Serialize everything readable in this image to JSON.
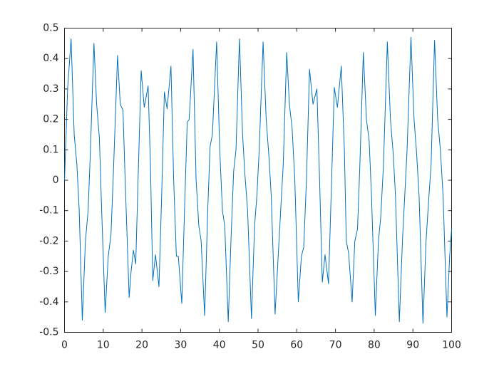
{
  "chart_data": {
    "type": "line",
    "x": [
      0,
      0.8,
      1.7,
      2.5,
      3.2,
      3.8,
      4.6,
      5.4,
      6.1,
      6.7,
      7.6,
      8.3,
      9.0,
      9.6,
      10.5,
      11.3,
      12.0,
      12.7,
      13.7,
      14.4,
      15.1,
      15.8,
      16.7,
      17.2,
      17.8,
      18.4,
      19.0,
      19.8,
      20.6,
      21.6,
      22.2,
      22.8,
      23.5,
      24.4,
      25.1,
      25.8,
      26.5,
      27.5,
      28.2,
      28.9,
      29.4,
      30.3,
      31.0,
      31.7,
      32.2,
      33.2,
      34.0,
      34.7,
      35.3,
      36.2,
      37.0,
      37.6,
      38.2,
      39.3,
      40.1,
      40.8,
      41.4,
      42.3,
      43.0,
      43.7,
      44.3,
      45.2,
      46.0,
      46.6,
      47.3,
      48.3,
      49.1,
      49.7,
      50.3,
      51.3,
      52.1,
      52.8,
      53.4,
      54.4,
      55.2,
      55.8,
      56.5,
      57.4,
      58.1,
      58.8,
      59.5,
      60.4,
      61.2,
      61.8,
      62.5,
      63.3,
      64.2,
      65.2,
      65.9,
      66.6,
      67.3,
      68.2,
      69.0,
      69.7,
      70.5,
      71.5,
      72.3,
      72.8,
      73.4,
      74.3,
      75.0,
      75.7,
      76.3,
      77.2,
      78.0,
      78.7,
      79.3,
      80.3,
      81.1,
      81.7,
      82.4,
      83.4,
      84.2,
      84.9,
      85.5,
      86.5,
      87.3,
      87.9,
      88.5,
      89.5,
      90.3,
      90.9,
      91.6,
      92.6,
      93.4,
      94.0,
      94.7,
      95.6,
      96.4,
      97.1,
      97.8,
      98.8,
      99.5,
      100
    ],
    "series": [
      {
        "color": "#0072bd",
        "values": [
          0,
          0.3,
          0.465,
          0.15,
          0.05,
          -0.1,
          -0.46,
          -0.2,
          -0.1,
          0.1,
          0.45,
          0.25,
          0.14,
          -0.1,
          -0.435,
          -0.25,
          -0.18,
          0.05,
          0.41,
          0.25,
          0.23,
          -0.05,
          -0.385,
          -0.3,
          -0.23,
          -0.275,
          0.0,
          0.36,
          0.24,
          0.31,
          0.05,
          -0.33,
          -0.245,
          -0.35,
          -0.05,
          0.29,
          0.235,
          0.375,
          0.0,
          -0.25,
          -0.25,
          -0.405,
          -0.1,
          0.19,
          0.2,
          0.43,
          0.0,
          -0.15,
          -0.2,
          -0.445,
          -0.1,
          0.11,
          0.15,
          0.455,
          0.1,
          -0.1,
          -0.15,
          -0.465,
          -0.2,
          0.03,
          0.1,
          0.465,
          0.15,
          0.02,
          -0.1,
          -0.455,
          -0.15,
          -0.05,
          0.1,
          0.455,
          0.2,
          0.08,
          -0.05,
          -0.44,
          -0.25,
          -0.11,
          0.05,
          0.42,
          0.25,
          0.17,
          0.0,
          -0.4,
          -0.25,
          -0.22,
          0.0,
          0.365,
          0.25,
          0.3,
          0.0,
          -0.335,
          -0.245,
          -0.34,
          0.0,
          0.305,
          0.24,
          0.375,
          0.1,
          -0.2,
          -0.24,
          -0.4,
          -0.2,
          -0.16,
          0.05,
          0.42,
          0.2,
          0.13,
          -0.05,
          -0.445,
          -0.2,
          -0.12,
          0.05,
          0.455,
          0.2,
          0.09,
          -0.05,
          -0.465,
          -0.2,
          -0.05,
          0.1,
          0.47,
          0.2,
          0.1,
          -0.05,
          -0.47,
          -0.2,
          -0.08,
          0.05,
          0.46,
          0.2,
          0.1,
          -0.05,
          -0.45,
          -0.25,
          -0.16
        ]
      }
    ],
    "xlim": [
      0,
      100
    ],
    "xticks": [
      0,
      10,
      20,
      30,
      40,
      50,
      60,
      70,
      80,
      90,
      100
    ],
    "ylim": [
      -0.5,
      0.5
    ],
    "yticks": [
      -0.5,
      -0.4,
      -0.3,
      -0.2,
      -0.1,
      0,
      0.1,
      0.2,
      0.3,
      0.4,
      0.5
    ]
  }
}
